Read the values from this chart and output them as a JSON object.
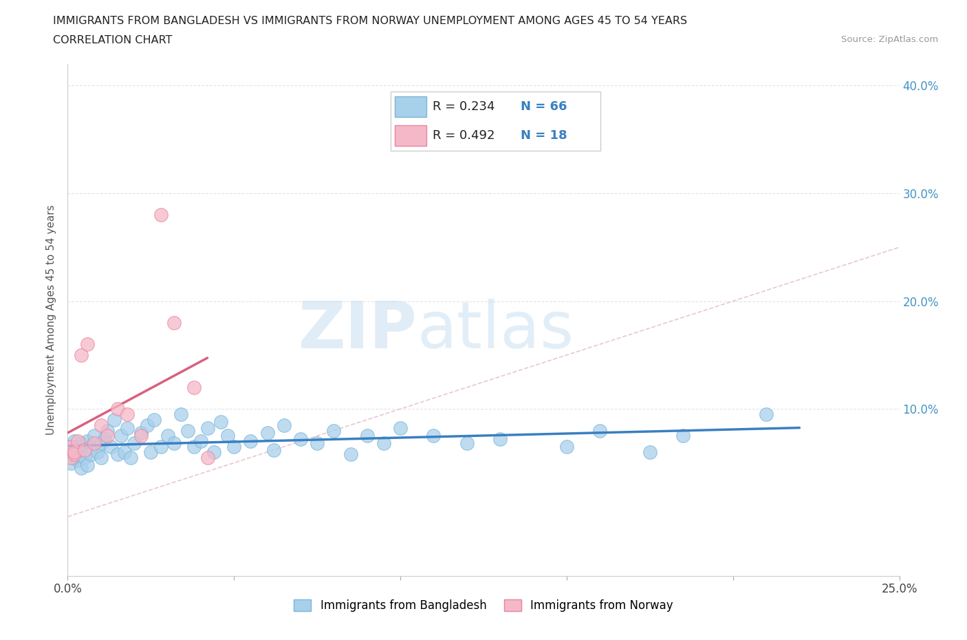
{
  "title_line1": "IMMIGRANTS FROM BANGLADESH VS IMMIGRANTS FROM NORWAY UNEMPLOYMENT AMONG AGES 45 TO 54 YEARS",
  "title_line2": "CORRELATION CHART",
  "source_text": "Source: ZipAtlas.com",
  "ylabel": "Unemployment Among Ages 45 to 54 years",
  "xlim": [
    0.0,
    0.25
  ],
  "ylim": [
    -0.055,
    0.42
  ],
  "ytick_labels": [
    "10.0%",
    "20.0%",
    "30.0%",
    "40.0%"
  ],
  "ytick_positions": [
    0.1,
    0.2,
    0.3,
    0.4
  ],
  "bangladesh_color": "#a8d0eb",
  "bangladesh_edge": "#7ab5d8",
  "norway_color": "#f5b8c8",
  "norway_edge": "#e8849e",
  "trend_bangladesh_color": "#3a7fc1",
  "trend_norway_color": "#d95f7f",
  "diagonal_color": "#e8c0c8",
  "R_bangladesh": 0.234,
  "N_bangladesh": 66,
  "R_norway": 0.492,
  "N_norway": 18,
  "legend_bangladesh": "Immigrants from Bangladesh",
  "legend_norway": "Immigrants from Norway",
  "bangladesh_x": [
    0.001,
    0.001,
    0.001,
    0.002,
    0.002,
    0.002,
    0.003,
    0.003,
    0.003,
    0.004,
    0.004,
    0.005,
    0.005,
    0.006,
    0.006,
    0.007,
    0.007,
    0.008,
    0.009,
    0.01,
    0.01,
    0.011,
    0.012,
    0.013,
    0.014,
    0.015,
    0.016,
    0.017,
    0.018,
    0.019,
    0.02,
    0.022,
    0.024,
    0.025,
    0.026,
    0.028,
    0.03,
    0.032,
    0.034,
    0.036,
    0.038,
    0.04,
    0.042,
    0.044,
    0.046,
    0.048,
    0.05,
    0.055,
    0.06,
    0.062,
    0.065,
    0.07,
    0.075,
    0.08,
    0.085,
    0.09,
    0.095,
    0.1,
    0.11,
    0.12,
    0.13,
    0.15,
    0.16,
    0.175,
    0.185,
    0.21
  ],
  "bangladesh_y": [
    0.06,
    0.065,
    0.05,
    0.055,
    0.06,
    0.07,
    0.058,
    0.065,
    0.052,
    0.068,
    0.045,
    0.062,
    0.055,
    0.07,
    0.048,
    0.065,
    0.058,
    0.075,
    0.06,
    0.055,
    0.068,
    0.072,
    0.08,
    0.065,
    0.09,
    0.058,
    0.075,
    0.06,
    0.082,
    0.055,
    0.068,
    0.078,
    0.085,
    0.06,
    0.09,
    0.065,
    0.075,
    0.068,
    0.095,
    0.08,
    0.065,
    0.07,
    0.082,
    0.06,
    0.088,
    0.075,
    0.065,
    0.07,
    0.078,
    0.062,
    0.085,
    0.072,
    0.068,
    0.08,
    0.058,
    0.075,
    0.068,
    0.082,
    0.075,
    0.068,
    0.072,
    0.065,
    0.08,
    0.06,
    0.075,
    0.095
  ],
  "norway_x": [
    0.001,
    0.001,
    0.002,
    0.002,
    0.003,
    0.004,
    0.005,
    0.006,
    0.008,
    0.01,
    0.012,
    0.015,
    0.018,
    0.022,
    0.028,
    0.032,
    0.038,
    0.042
  ],
  "norway_y": [
    0.055,
    0.065,
    0.058,
    0.06,
    0.07,
    0.15,
    0.062,
    0.16,
    0.068,
    0.085,
    0.075,
    0.1,
    0.095,
    0.075,
    0.28,
    0.18,
    0.12,
    0.055
  ]
}
